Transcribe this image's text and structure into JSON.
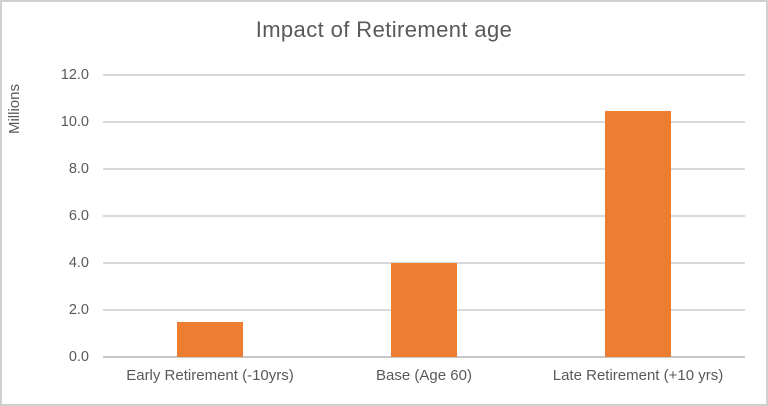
{
  "chart_data": {
    "type": "bar",
    "title": "Impact of Retirement age",
    "xlabel": "",
    "ylabel": "Millions",
    "categories": [
      "Early Retirement (-10yrs)",
      "Base (Age 60)",
      "Late Retirement (+10 yrs)"
    ],
    "values": [
      1.5,
      4.0,
      10.45
    ],
    "ylim": [
      0,
      12
    ],
    "ytick_step": 2,
    "ytick_labels": [
      "0.0",
      "2.0",
      "4.0",
      "6.0",
      "8.0",
      "10.0",
      "12.0"
    ],
    "grid": true,
    "legend_position": "none",
    "colors": {
      "bar": "#ED7D31",
      "gridline": "#DADADA",
      "axis_line": "#C6C6C6",
      "text": "#595959",
      "frame_border": "#D0CECE",
      "background": "#FFFFFF"
    }
  }
}
